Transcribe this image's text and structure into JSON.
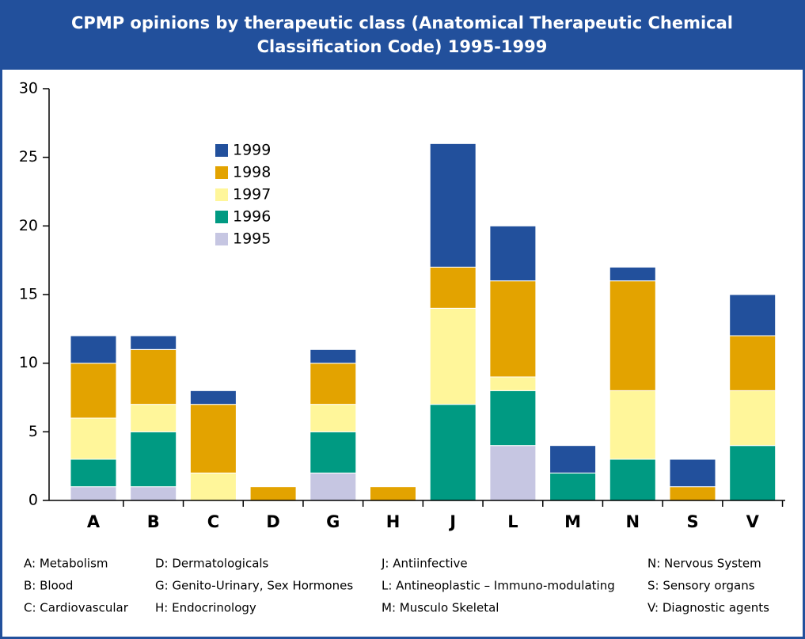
{
  "chart_data": {
    "type": "stacked_bar",
    "title": "CPMP opinions by therapeutic class (Anatomical Therapeutic Chemical Classification Code) 1995-1999",
    "categories": [
      "A",
      "B",
      "C",
      "D",
      "G",
      "H",
      "J",
      "L",
      "M",
      "N",
      "S",
      "V"
    ],
    "series": [
      {
        "name": "1995",
        "color": "#c6c6e2",
        "values": [
          1,
          1,
          0,
          0,
          2,
          0,
          0,
          4,
          0,
          0,
          0,
          0
        ]
      },
      {
        "name": "1996",
        "color": "#009a82",
        "values": [
          2,
          4,
          0,
          0,
          3,
          0,
          7,
          4,
          2,
          3,
          0,
          4
        ]
      },
      {
        "name": "1997",
        "color": "#fff69a",
        "values": [
          3,
          2,
          2,
          0,
          2,
          0,
          7,
          1,
          0,
          5,
          0,
          4
        ]
      },
      {
        "name": "1998",
        "color": "#e3a300",
        "values": [
          4,
          4,
          5,
          1,
          3,
          1,
          3,
          7,
          0,
          8,
          1,
          4
        ]
      },
      {
        "name": "1999",
        "color": "#22509c",
        "values": [
          2,
          1,
          1,
          0,
          1,
          0,
          9,
          4,
          2,
          1,
          2,
          3
        ]
      }
    ],
    "ylim": [
      0,
      30
    ],
    "yticks": [
      0,
      5,
      10,
      15,
      20,
      25,
      30
    ],
    "notes": [
      "A: Metabolism",
      "B: Blood",
      "C: Cardiovascular",
      "D: Dermatologicals",
      "G: Genito-Urinary, Sex Hormones",
      "H: Endocrinology",
      "J: Antiinfective",
      "L: Antineoplastic – Immuno-modulating",
      "M: Musculo Skeletal",
      "N: Nervous System",
      "S: Sensory organs",
      "V: Diagnostic agents"
    ]
  }
}
